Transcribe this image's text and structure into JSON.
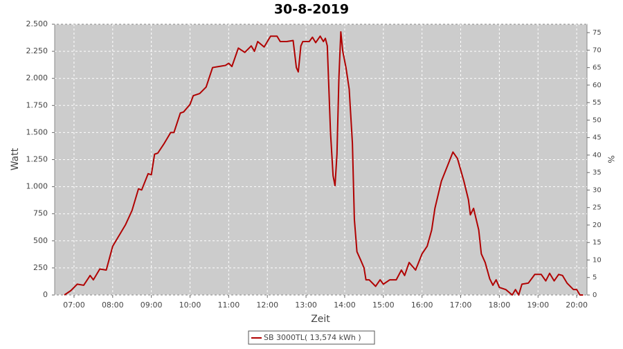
{
  "chart_data": {
    "type": "line",
    "title": "30-8-2019",
    "xlabel": "Zeit",
    "ylabel": "Watt",
    "y2label": "%",
    "x": [
      "06:45",
      "06:55",
      "07:05",
      "07:15",
      "07:25",
      "07:30",
      "07:40",
      "07:50",
      "08:00",
      "08:10",
      "08:20",
      "08:30",
      "08:40",
      "08:45",
      "08:55",
      "09:00",
      "09:05",
      "09:10",
      "09:20",
      "09:30",
      "09:35",
      "09:45",
      "09:50",
      "10:00",
      "10:05",
      "10:15",
      "10:25",
      "10:35",
      "10:45",
      "10:55",
      "11:00",
      "11:05",
      "11:15",
      "11:25",
      "11:35",
      "11:40",
      "11:45",
      "11:55",
      "12:05",
      "12:15",
      "12:20",
      "12:30",
      "12:40",
      "12:45",
      "12:48",
      "12:52",
      "12:55",
      "13:05",
      "13:10",
      "13:15",
      "13:22",
      "13:27",
      "13:30",
      "13:33",
      "13:38",
      "13:42",
      "13:45",
      "13:48",
      "13:51",
      "13:54",
      "13:57",
      "14:02",
      "14:07",
      "14:12",
      "14:15",
      "14:19",
      "14:25",
      "14:30",
      "14:33",
      "14:38",
      "14:48",
      "14:55",
      "15:00",
      "15:10",
      "15:20",
      "15:28",
      "15:33",
      "15:40",
      "15:50",
      "16:00",
      "16:08",
      "16:15",
      "16:20",
      "16:30",
      "16:40",
      "16:48",
      "16:55",
      "17:05",
      "17:12",
      "17:15",
      "17:20",
      "17:28",
      "17:32",
      "17:38",
      "17:45",
      "17:50",
      "17:55",
      "18:00",
      "18:10",
      "18:20",
      "18:25",
      "18:30",
      "18:35",
      "18:45",
      "18:55",
      "19:05",
      "19:12",
      "19:18",
      "19:25",
      "19:32",
      "19:38",
      "19:45",
      "19:55",
      "20:00",
      "20:05",
      "20:10"
    ],
    "series": [
      {
        "name": "SB 3000TL( 13,574 kWh )",
        "color": "#b00000",
        "values": [
          0,
          40,
          100,
          90,
          180,
          140,
          240,
          230,
          450,
          550,
          650,
          780,
          980,
          970,
          1120,
          1110,
          1300,
          1310,
          1400,
          1500,
          1500,
          1680,
          1690,
          1760,
          1840,
          1860,
          1920,
          2100,
          2110,
          2120,
          2140,
          2110,
          2280,
          2240,
          2300,
          2250,
          2340,
          2290,
          2390,
          2390,
          2340,
          2340,
          2350,
          2100,
          2060,
          2300,
          2340,
          2340,
          2380,
          2330,
          2390,
          2340,
          2370,
          2300,
          1500,
          1100,
          1010,
          1300,
          2000,
          2430,
          2250,
          2100,
          1900,
          1400,
          700,
          400,
          320,
          250,
          140,
          140,
          80,
          140,
          100,
          140,
          140,
          230,
          180,
          300,
          230,
          380,
          450,
          600,
          800,
          1050,
          1200,
          1320,
          1260,
          1050,
          880,
          740,
          800,
          600,
          380,
          300,
          150,
          90,
          140,
          70,
          50,
          0,
          50,
          0,
          100,
          110,
          190,
          190,
          130,
          200,
          130,
          190,
          180,
          110,
          50,
          50,
          0,
          0
        ]
      }
    ],
    "xlim": [
      "06:30",
      "20:16"
    ],
    "xticks": [
      "07:00",
      "08:00",
      "09:00",
      "10:00",
      "11:00",
      "12:00",
      "13:00",
      "14:00",
      "15:00",
      "16:00",
      "17:00",
      "18:00",
      "19:00",
      "20:00"
    ],
    "ylim": [
      0,
      2500
    ],
    "yticks": [
      0,
      250,
      500,
      750,
      {
        "value": 1000,
        "label": "1.000"
      },
      {
        "value": 1250,
        "label": "1.250"
      },
      {
        "value": 1500,
        "label": "1.500"
      },
      {
        "value": 1750,
        "label": "1.750"
      },
      {
        "value": 2000,
        "label": "2.000"
      },
      {
        "value": 2250,
        "label": "2.250"
      },
      {
        "value": 2500,
        "label": "2.500"
      }
    ],
    "y2lim": [
      0,
      77.4
    ],
    "y2ticks": [
      0,
      5,
      10,
      15,
      20,
      25,
      30,
      35,
      40,
      45,
      50,
      55,
      60,
      65,
      70,
      75
    ],
    "grid": true
  }
}
